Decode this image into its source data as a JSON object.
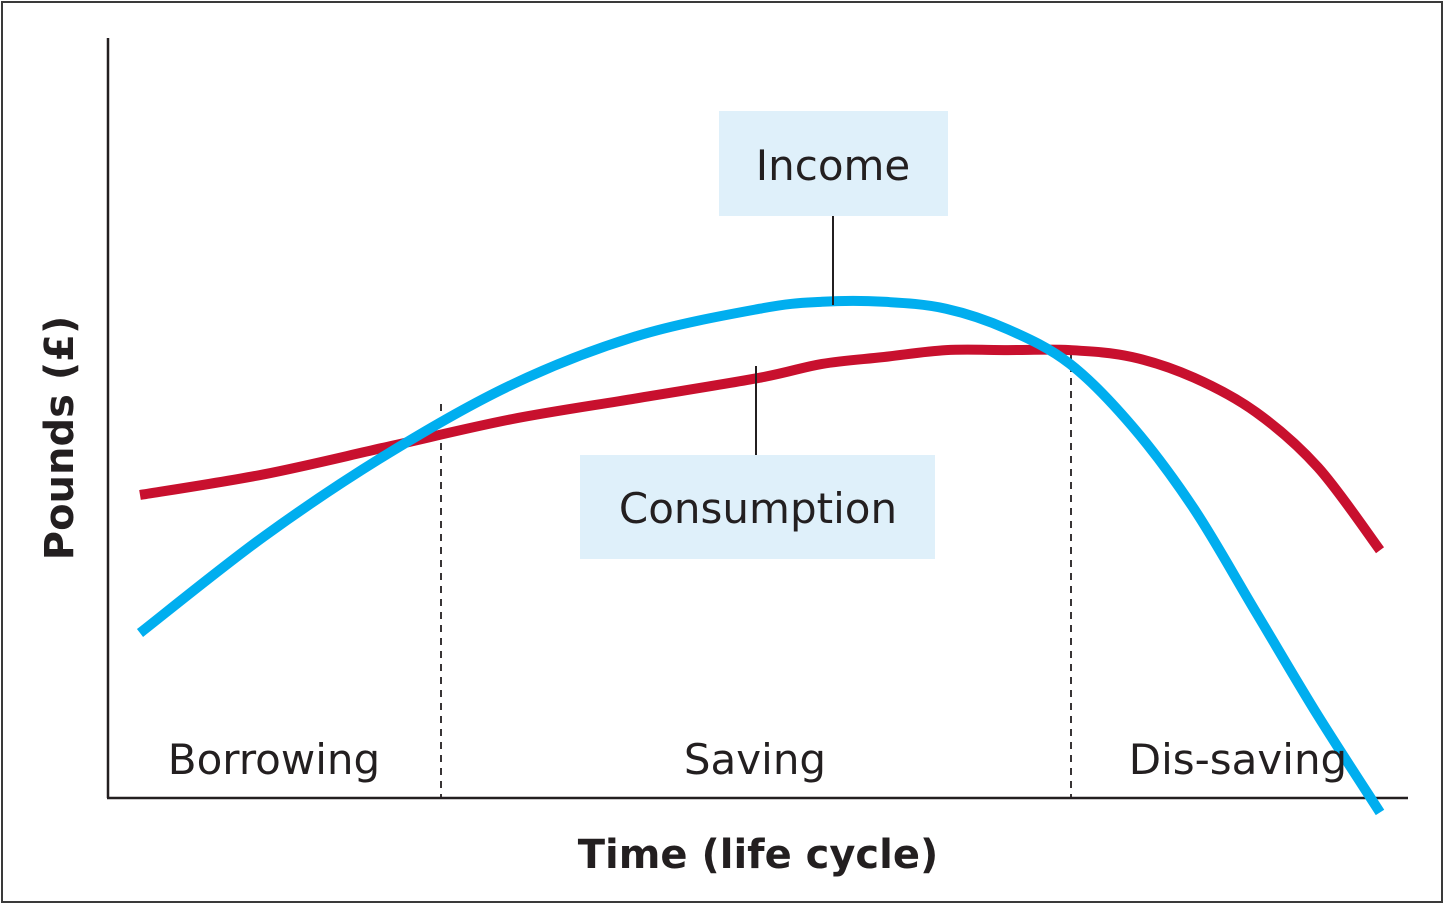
{
  "chart_data": {
    "type": "line",
    "xlabel": "Time (life cycle)",
    "ylabel": "Pounds (£)",
    "grid": false,
    "colors": {
      "income": "#00aeef",
      "consumption": "#c8102e",
      "callout_bg": "#dff0fa",
      "axis": "#231f20"
    },
    "series": [
      {
        "name": "Income",
        "color": "#00aeef",
        "x": [
          0,
          0.1,
          0.2,
          0.3,
          0.4,
          0.5,
          0.55,
          0.6,
          0.65,
          0.7,
          0.75,
          0.8,
          0.85,
          0.9,
          0.95,
          1.0
        ],
        "y": [
          0.3,
          0.44,
          0.56,
          0.66,
          0.73,
          0.77,
          0.78,
          0.78,
          0.77,
          0.74,
          0.69,
          0.6,
          0.48,
          0.33,
          0.18,
          0.04
        ]
      },
      {
        "name": "Consumption",
        "color": "#c8102e",
        "x": [
          0,
          0.1,
          0.2,
          0.3,
          0.4,
          0.5,
          0.55,
          0.6,
          0.65,
          0.7,
          0.75,
          0.8,
          0.85,
          0.9,
          0.95,
          1.0
        ],
        "y": [
          0.5,
          0.53,
          0.57,
          0.61,
          0.64,
          0.67,
          0.69,
          0.7,
          0.71,
          0.71,
          0.71,
          0.7,
          0.67,
          0.62,
          0.54,
          0.42
        ]
      }
    ],
    "regions": [
      {
        "label": "Borrowing"
      },
      {
        "label": "Saving"
      },
      {
        "label": "Dis-saving"
      }
    ],
    "callouts": {
      "income": "Income",
      "consumption": "Consumption"
    }
  }
}
